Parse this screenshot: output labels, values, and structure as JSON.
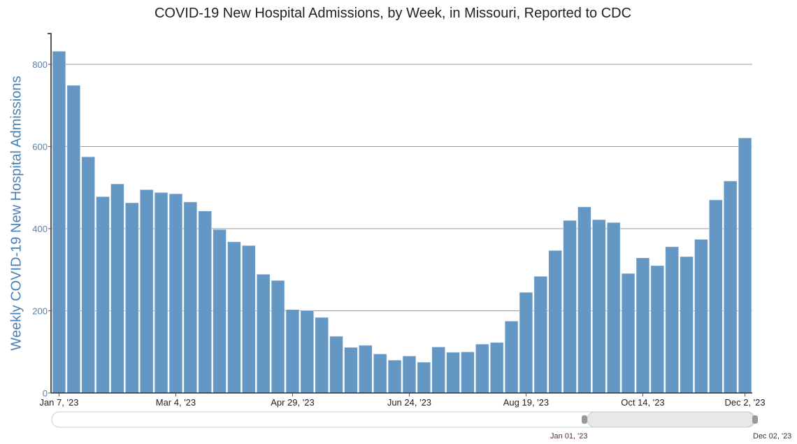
{
  "chart_data": {
    "type": "bar",
    "title": "COVID-19 New Hospital Admissions, by Week, in Missouri, Reported to CDC",
    "xlabel": "",
    "ylabel": "Weekly COVID-19 New Hospital Admissions",
    "ylim": [
      0,
      875
    ],
    "yticks": [
      0,
      200,
      400,
      600,
      800
    ],
    "grid": true,
    "color": "#6497c4",
    "xtick_labels": [
      {
        "index": 0,
        "label": "Jan 7, '23"
      },
      {
        "index": 8,
        "label": "Mar 4, '23"
      },
      {
        "index": 16,
        "label": "Apr 29, '23"
      },
      {
        "index": 24,
        "label": "Jun 24, '23"
      },
      {
        "index": 32,
        "label": "Aug 19, '23"
      },
      {
        "index": 40,
        "label": "Oct 14, '23"
      },
      {
        "index": 47,
        "label": "Dec 2, '23"
      }
    ],
    "values": [
      832,
      749,
      575,
      478,
      509,
      463,
      495,
      488,
      485,
      465,
      443,
      398,
      368,
      359,
      289,
      274,
      203,
      201,
      184,
      138,
      111,
      116,
      95,
      80,
      90,
      75,
      112,
      99,
      100,
      119,
      123,
      175,
      245,
      284,
      347,
      420,
      453,
      422,
      415,
      291,
      329,
      310,
      356,
      332,
      374,
      470,
      516,
      621
    ]
  },
  "navigator": {
    "start_label": "Jan 01, '23",
    "end_label": "Dec 02, '23"
  }
}
